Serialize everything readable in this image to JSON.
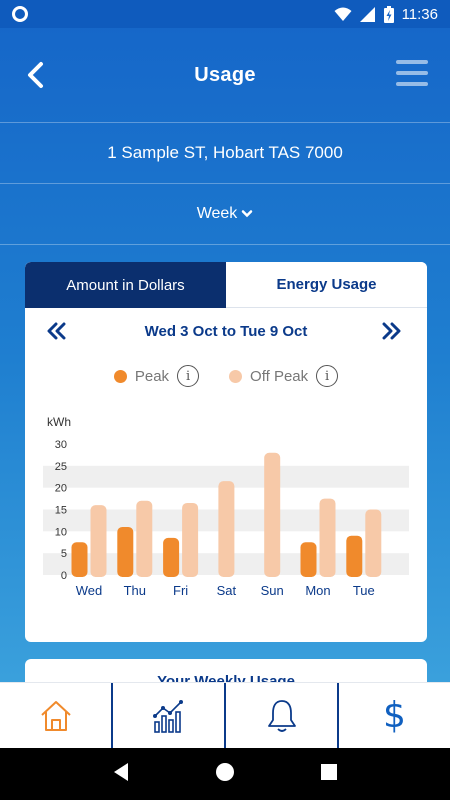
{
  "status_bar": {
    "time": "11:36"
  },
  "header": {
    "title": "Usage"
  },
  "address": "1 Sample ST, Hobart TAS 7000",
  "period": {
    "selected": "Week"
  },
  "tabs": [
    {
      "label": "Amount in Dollars",
      "active": false
    },
    {
      "label": "Energy Usage",
      "active": true
    }
  ],
  "range": {
    "label": "Wed 3 Oct to Tue 9 Oct"
  },
  "legend": [
    {
      "label": "Peak",
      "color": "#f08a2c"
    },
    {
      "label": "Off Peak",
      "color": "#f7c9a8"
    }
  ],
  "chart_data": {
    "type": "bar",
    "ylabel": "kWh",
    "ylim": [
      0,
      30
    ],
    "yticks": [
      0,
      5,
      10,
      15,
      20,
      25,
      30
    ],
    "categories": [
      "Wed",
      "Thu",
      "Fri",
      "Sat",
      "Sun",
      "Mon",
      "Tue"
    ],
    "series": [
      {
        "name": "Peak",
        "color": "#f08a2c",
        "values": [
          7.5,
          11,
          8.5,
          0,
          0,
          7.5,
          9
        ]
      },
      {
        "name": "Off Peak",
        "color": "#f7c9a8",
        "values": [
          16,
          17,
          16.5,
          21.5,
          28,
          17.5,
          15
        ]
      }
    ],
    "grid": "alternating-bands"
  },
  "next_card": {
    "title": "Your Weekly Usage"
  },
  "bottom_nav": [
    {
      "icon": "home-icon",
      "active": true
    },
    {
      "icon": "chart-icon",
      "active": false
    },
    {
      "icon": "bell-icon",
      "active": false
    },
    {
      "icon": "dollar-icon",
      "active": false,
      "glyph": "$"
    }
  ],
  "colors": {
    "accent": "#0b3a8a",
    "peak": "#f08a2c",
    "off_peak": "#f7c9a8",
    "home_active": "#f08a2c"
  }
}
